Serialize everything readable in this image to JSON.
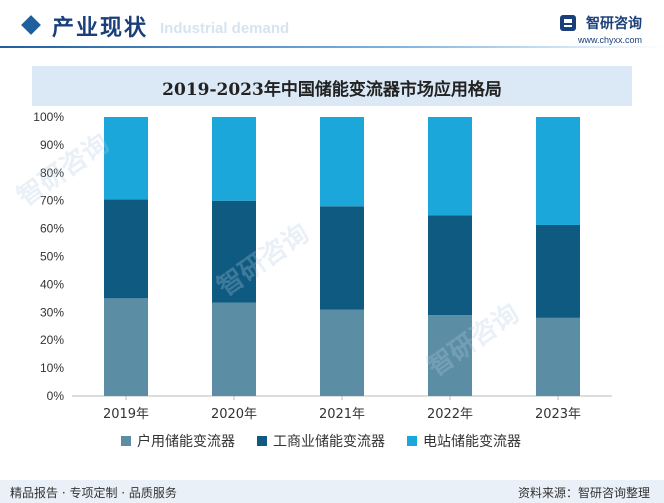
{
  "header": {
    "section_title": "产业现状",
    "section_subtitle": "Industrial demand",
    "brand_name": "智研咨询",
    "brand_url": "www.chyxx.com"
  },
  "footer": {
    "left": "精品报告 · 专项定制 · 品质服务",
    "right": "资料来源：智研咨询整理"
  },
  "watermark_text": "智研咨询",
  "colors": {
    "series1": "#5b8ea5",
    "series2": "#0f5a80",
    "series3": "#1ca7db"
  },
  "chart_data": {
    "type": "bar",
    "stacked": true,
    "title": "2019-2023年中国储能变流器市场应用格局",
    "categories": [
      "2019年",
      "2020年",
      "2021年",
      "2022年",
      "2023年"
    ],
    "series": [
      {
        "name": "户用储能变流器",
        "values": [
          35,
          33.5,
          31,
          29,
          28
        ]
      },
      {
        "name": "工商业储能变流器",
        "values": [
          35.5,
          36.5,
          37,
          35.8,
          33.3
        ]
      },
      {
        "name": "电站储能变流器",
        "values": [
          29.5,
          30,
          32,
          35.2,
          38.7
        ]
      }
    ],
    "yticks": [
      "0%",
      "10%",
      "20%",
      "30%",
      "40%",
      "50%",
      "60%",
      "70%",
      "80%",
      "90%",
      "100%"
    ],
    "ylim": [
      0,
      100
    ],
    "xlabel": "",
    "ylabel": "",
    "legend_position": "bottom"
  }
}
